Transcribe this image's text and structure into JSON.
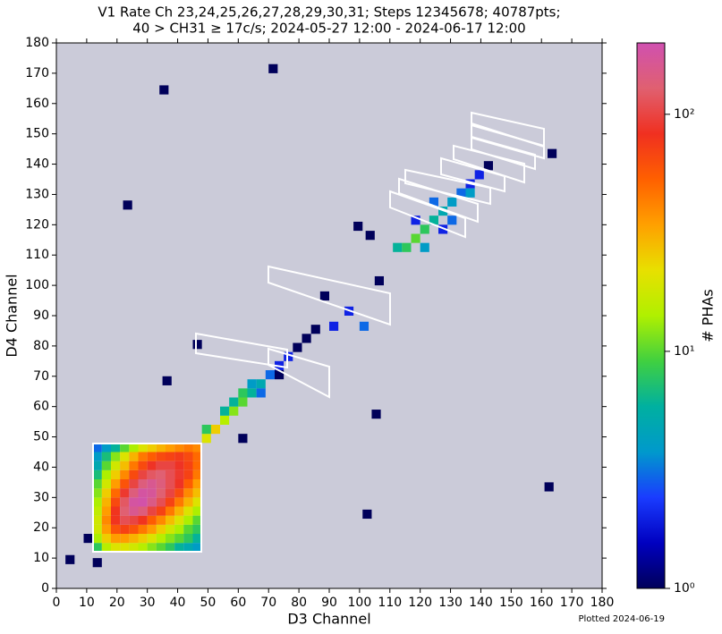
{
  "chart_data": {
    "type": "heatmap",
    "title": [
      "V1 Rate Ch 23,24,25,26,27,28,29,30,31; Steps 12345678; 40787pts;",
      "40 > CH31 ≥ 17c/s; 2024-05-27 12:00 - 2024-06-17 12:00"
    ],
    "x_label": "D3 Channel",
    "y_label": "D4 Channel",
    "colorbar_label": "# PHAs",
    "footnote": "Plotted 2024-06-19",
    "xlim": [
      0,
      180
    ],
    "ylim": [
      0,
      180
    ],
    "xticks": [
      0,
      10,
      20,
      30,
      40,
      50,
      60,
      70,
      80,
      90,
      100,
      110,
      120,
      130,
      140,
      150,
      160,
      170,
      180
    ],
    "yticks": [
      0,
      10,
      20,
      30,
      40,
      50,
      60,
      70,
      80,
      90,
      100,
      110,
      120,
      130,
      140,
      150,
      160,
      170,
      180
    ],
    "zlim": [
      1,
      200
    ],
    "z_log": true,
    "zticks": [
      {
        "value": 1,
        "label": "10⁰"
      },
      {
        "value": 10,
        "label": "10¹"
      },
      {
        "value": 100,
        "label": "10²"
      }
    ],
    "background": "#cbcbd9",
    "colormap": [
      "#00005a",
      "#0000c0",
      "#1a3cff",
      "#0099cc",
      "#00b0a0",
      "#40d040",
      "#b0f000",
      "#e8e000",
      "#ffa000",
      "#ff6000",
      "#f03020",
      "#e06070",
      "#d050b0"
    ],
    "cell_size": 3,
    "cells": [
      [
        12,
        12,
        8
      ],
      [
        15,
        12,
        15
      ],
      [
        18,
        12,
        20
      ],
      [
        21,
        12,
        20
      ],
      [
        24,
        12,
        18
      ],
      [
        27,
        12,
        15
      ],
      [
        30,
        12,
        12
      ],
      [
        33,
        12,
        10
      ],
      [
        36,
        12,
        8
      ],
      [
        39,
        12,
        6
      ],
      [
        42,
        12,
        5
      ],
      [
        45,
        12,
        4
      ],
      [
        12,
        15,
        14
      ],
      [
        15,
        15,
        25
      ],
      [
        18,
        15,
        35
      ],
      [
        21,
        15,
        35
      ],
      [
        24,
        15,
        30
      ],
      [
        27,
        15,
        25
      ],
      [
        30,
        15,
        20
      ],
      [
        33,
        15,
        15
      ],
      [
        36,
        15,
        12
      ],
      [
        39,
        15,
        10
      ],
      [
        42,
        15,
        8
      ],
      [
        45,
        15,
        6
      ],
      [
        12,
        18,
        18
      ],
      [
        15,
        18,
        35
      ],
      [
        18,
        18,
        60
      ],
      [
        21,
        18,
        70
      ],
      [
        24,
        18,
        60
      ],
      [
        27,
        18,
        45
      ],
      [
        30,
        18,
        35
      ],
      [
        33,
        18,
        25
      ],
      [
        36,
        18,
        18
      ],
      [
        39,
        18,
        14
      ],
      [
        42,
        18,
        10
      ],
      [
        45,
        18,
        8
      ],
      [
        12,
        21,
        18
      ],
      [
        15,
        21,
        40
      ],
      [
        18,
        21,
        80
      ],
      [
        21,
        21,
        110
      ],
      [
        24,
        21,
        100
      ],
      [
        27,
        21,
        80
      ],
      [
        30,
        21,
        55
      ],
      [
        33,
        21,
        40
      ],
      [
        36,
        21,
        28
      ],
      [
        39,
        21,
        20
      ],
      [
        42,
        21,
        14
      ],
      [
        45,
        21,
        10
      ],
      [
        12,
        24,
        16
      ],
      [
        15,
        24,
        35
      ],
      [
        18,
        24,
        80
      ],
      [
        21,
        24,
        130
      ],
      [
        24,
        24,
        160
      ],
      [
        27,
        24,
        140
      ],
      [
        30,
        24,
        100
      ],
      [
        33,
        24,
        70
      ],
      [
        36,
        24,
        45
      ],
      [
        39,
        24,
        30
      ],
      [
        42,
        24,
        20
      ],
      [
        45,
        24,
        14
      ],
      [
        12,
        27,
        14
      ],
      [
        15,
        27,
        30
      ],
      [
        18,
        27,
        65
      ],
      [
        21,
        27,
        120
      ],
      [
        24,
        27,
        180
      ],
      [
        27,
        27,
        190
      ],
      [
        30,
        27,
        150
      ],
      [
        33,
        27,
        110
      ],
      [
        36,
        27,
        70
      ],
      [
        39,
        27,
        45
      ],
      [
        42,
        27,
        30
      ],
      [
        45,
        27,
        20
      ],
      [
        12,
        30,
        12
      ],
      [
        15,
        30,
        25
      ],
      [
        18,
        30,
        50
      ],
      [
        21,
        30,
        90
      ],
      [
        24,
        30,
        140
      ],
      [
        27,
        30,
        180
      ],
      [
        30,
        30,
        170
      ],
      [
        33,
        30,
        130
      ],
      [
        36,
        30,
        100
      ],
      [
        39,
        30,
        65
      ],
      [
        42,
        30,
        40
      ],
      [
        45,
        30,
        28
      ],
      [
        12,
        33,
        10
      ],
      [
        15,
        33,
        18
      ],
      [
        18,
        33,
        35
      ],
      [
        21,
        33,
        60
      ],
      [
        24,
        33,
        100
      ],
      [
        27,
        33,
        140
      ],
      [
        30,
        33,
        160
      ],
      [
        33,
        33,
        140
      ],
      [
        36,
        33,
        110
      ],
      [
        39,
        33,
        85
      ],
      [
        42,
        33,
        55
      ],
      [
        45,
        33,
        35
      ],
      [
        12,
        36,
        7
      ],
      [
        15,
        36,
        14
      ],
      [
        18,
        36,
        25
      ],
      [
        21,
        36,
        40
      ],
      [
        24,
        36,
        65
      ],
      [
        27,
        36,
        100
      ],
      [
        30,
        36,
        120
      ],
      [
        33,
        36,
        130
      ],
      [
        36,
        36,
        110
      ],
      [
        39,
        36,
        90
      ],
      [
        42,
        36,
        70
      ],
      [
        45,
        36,
        45
      ],
      [
        12,
        39,
        5
      ],
      [
        15,
        39,
        10
      ],
      [
        18,
        39,
        18
      ],
      [
        21,
        39,
        28
      ],
      [
        24,
        39,
        45
      ],
      [
        27,
        39,
        65
      ],
      [
        30,
        39,
        85
      ],
      [
        33,
        39,
        100
      ],
      [
        36,
        39,
        100
      ],
      [
        39,
        39,
        85
      ],
      [
        42,
        39,
        70
      ],
      [
        45,
        39,
        50
      ],
      [
        12,
        42,
        4
      ],
      [
        15,
        42,
        7
      ],
      [
        18,
        42,
        12
      ],
      [
        21,
        42,
        20
      ],
      [
        24,
        42,
        30
      ],
      [
        27,
        42,
        45
      ],
      [
        30,
        42,
        55
      ],
      [
        33,
        42,
        65
      ],
      [
        36,
        42,
        70
      ],
      [
        39,
        42,
        75
      ],
      [
        42,
        42,
        65
      ],
      [
        45,
        42,
        50
      ],
      [
        12,
        45,
        3
      ],
      [
        15,
        45,
        4
      ],
      [
        18,
        45,
        6
      ],
      [
        21,
        45,
        10
      ],
      [
        24,
        45,
        14
      ],
      [
        27,
        45,
        20
      ],
      [
        30,
        45,
        25
      ],
      [
        33,
        45,
        30
      ],
      [
        36,
        45,
        35
      ],
      [
        39,
        45,
        40
      ],
      [
        42,
        45,
        45
      ],
      [
        45,
        45,
        40
      ],
      [
        48,
        48,
        20
      ],
      [
        51,
        51,
        25
      ],
      [
        48,
        51,
        8
      ],
      [
        54,
        54,
        15
      ],
      [
        57,
        57,
        12
      ],
      [
        54,
        57,
        6
      ],
      [
        60,
        60,
        10
      ],
      [
        57,
        60,
        6
      ],
      [
        60,
        63,
        8
      ],
      [
        63,
        63,
        6
      ],
      [
        66,
        66,
        5
      ],
      [
        63,
        66,
        4
      ],
      [
        66,
        63,
        3
      ],
      [
        69,
        69,
        3
      ],
      [
        72,
        72,
        2
      ],
      [
        75,
        75,
        2
      ],
      [
        72,
        69,
        1
      ],
      [
        78,
        78,
        1
      ],
      [
        81,
        81,
        1
      ],
      [
        84,
        84,
        1
      ],
      [
        111,
        111,
        6
      ],
      [
        114,
        111,
        8
      ],
      [
        117,
        114,
        10
      ],
      [
        120,
        117,
        8
      ],
      [
        123,
        120,
        6
      ],
      [
        126,
        123,
        5
      ],
      [
        129,
        126,
        4
      ],
      [
        132,
        129,
        3
      ],
      [
        135,
        132,
        2
      ],
      [
        138,
        135,
        2
      ],
      [
        141,
        138,
        1
      ],
      [
        120,
        111,
        4
      ],
      [
        129,
        120,
        3
      ],
      [
        126,
        117,
        2
      ],
      [
        123,
        126,
        3
      ],
      [
        117,
        120,
        2
      ],
      [
        135,
        129,
        4
      ],
      [
        34,
        163,
        1
      ],
      [
        70,
        170,
        1
      ],
      [
        22,
        125,
        1
      ],
      [
        101,
        23,
        1
      ],
      [
        161,
        32,
        1
      ],
      [
        104,
        56,
        1
      ],
      [
        35,
        67,
        1
      ],
      [
        90,
        85,
        2
      ],
      [
        100,
        85,
        3
      ],
      [
        95,
        90,
        2
      ],
      [
        105,
        100,
        1
      ],
      [
        102,
        115,
        1
      ],
      [
        60,
        48,
        1
      ],
      [
        45,
        79,
        1
      ],
      [
        12,
        7,
        1
      ],
      [
        3,
        8,
        1
      ],
      [
        9,
        15,
        1
      ],
      [
        87,
        95,
        1
      ],
      [
        98,
        118,
        1
      ],
      [
        162,
        142,
        1
      ]
    ]
  }
}
